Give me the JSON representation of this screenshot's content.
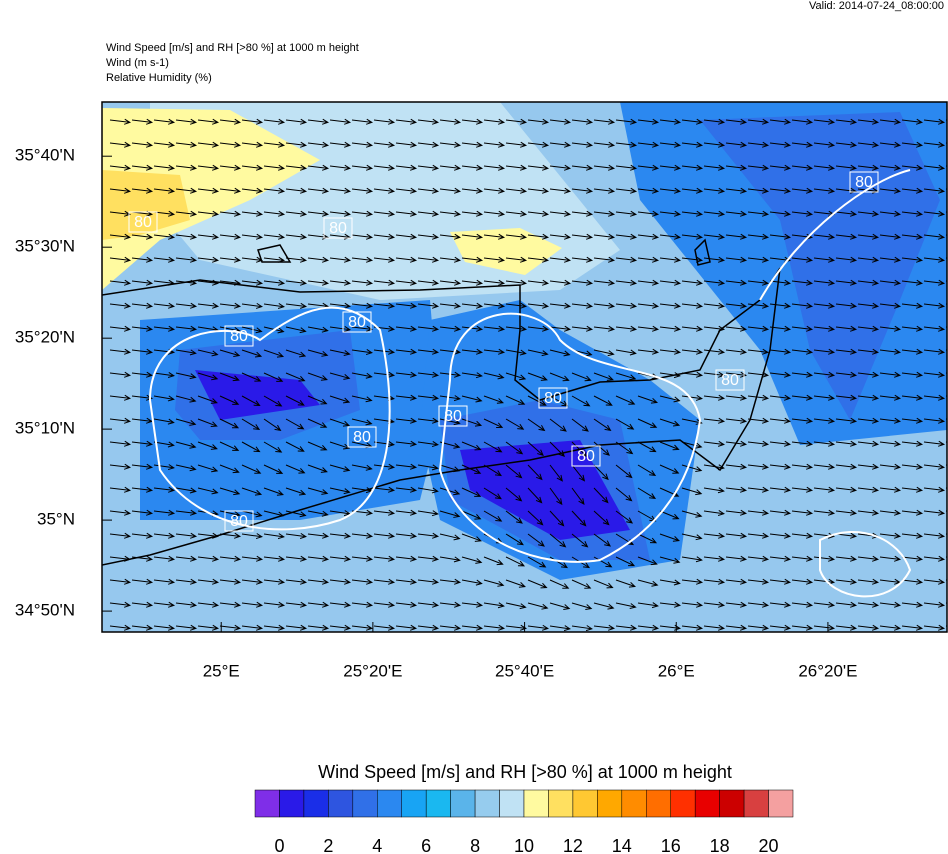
{
  "header": {
    "valid": "Valid: 2014-07-24_08:00:00",
    "lines": [
      "Wind Speed [m/s] and RH [>80 %] at 1000 m height",
      "Wind   (m s-1)",
      "Relative Humidity   (%)"
    ]
  },
  "map": {
    "xlim": [
      24.738,
      26.595
    ],
    "ylim": [
      34.795,
      35.766
    ],
    "xticks": [
      {
        "value": 25,
        "label": "25°E"
      },
      {
        "value": 25.3333,
        "label": "25°20'E"
      },
      {
        "value": 25.6667,
        "label": "25°40'E"
      },
      {
        "value": 26,
        "label": "26°E"
      },
      {
        "value": 26.3333,
        "label": "26°20'E"
      }
    ],
    "yticks": [
      {
        "value": 35.6667,
        "label": "35°40'N"
      },
      {
        "value": 35.5,
        "label": "35°30'N"
      },
      {
        "value": 35.3333,
        "label": "35°20'N"
      },
      {
        "value": 35.1667,
        "label": "35°10'N"
      },
      {
        "value": 35,
        "label": "35°N"
      },
      {
        "value": 34.8333,
        "label": "34°50'N"
      }
    ],
    "contour_labels": [
      80,
      80,
      80,
      80,
      80,
      80,
      80,
      80,
      80,
      80,
      80
    ]
  },
  "colorbar": {
    "title": "Wind Speed [m/s] and RH [>80 %] at 1000 m height",
    "colors": [
      "#7f2ee8",
      "#2a1ae8",
      "#1a2ee8",
      "#2e55e0",
      "#3070e8",
      "#2b88f0",
      "#18a4f4",
      "#1ab8f0",
      "#5ab4ea",
      "#96ccee",
      "#c0e2f4",
      "#fffaa0",
      "#ffe060",
      "#ffc832",
      "#ffa800",
      "#ff8c00",
      "#ff6e00",
      "#ff3000",
      "#e80000",
      "#cc0000",
      "#d84040",
      "#f4a0a0"
    ],
    "ticks": [
      0,
      2,
      4,
      6,
      8,
      10,
      12,
      14,
      16,
      18,
      20
    ]
  }
}
